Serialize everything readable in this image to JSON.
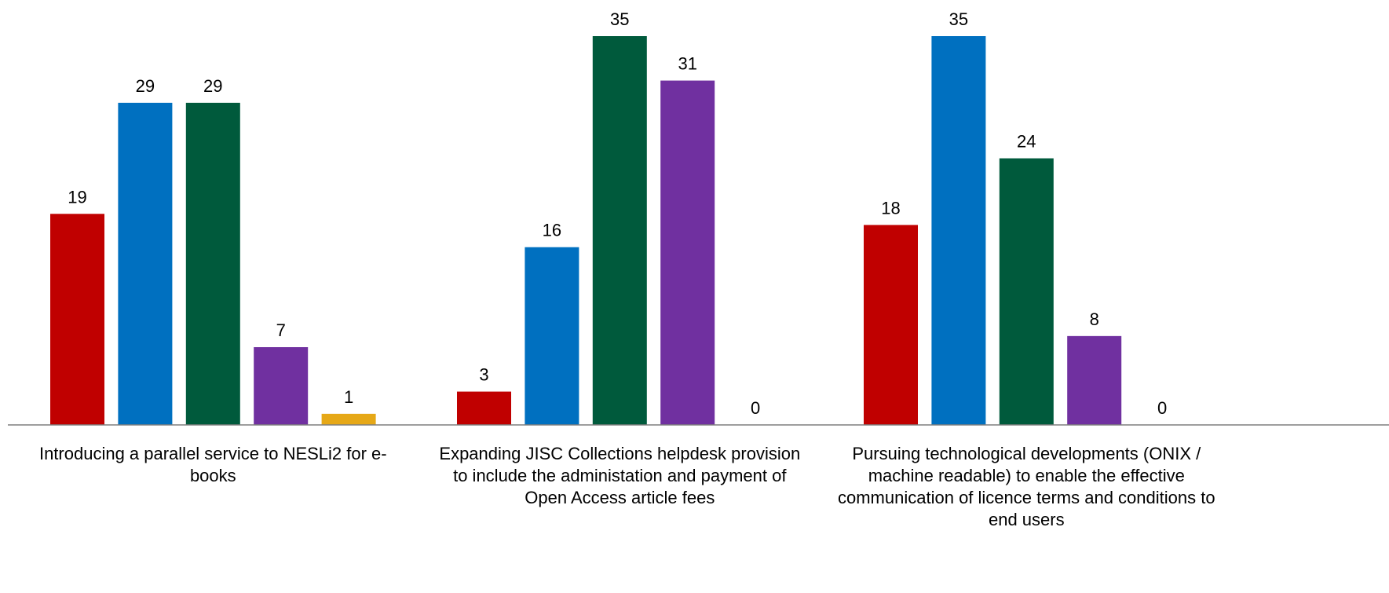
{
  "chart_data": {
    "type": "bar",
    "categories": [
      [
        "Introducing a parallel service to NESLi2 for e-",
        "books"
      ],
      [
        "Expanding JISC Collections helpdesk provision",
        "to include the administation and payment of",
        "Open Access article fees"
      ],
      [
        "Pursuing technological developments (ONIX /",
        "machine readable) to enable the effective",
        "communication of licence terms and conditions to",
        "end users"
      ]
    ],
    "series": [
      {
        "color": "#C00000",
        "values": [
          19,
          3,
          18
        ]
      },
      {
        "color": "#0070C0",
        "values": [
          29,
          16,
          35
        ]
      },
      {
        "color": "#005A3C",
        "values": [
          29,
          35,
          24
        ]
      },
      {
        "color": "#7030A0",
        "values": [
          7,
          31,
          8
        ]
      },
      {
        "color": "#E6A817",
        "values": [
          1,
          0,
          0
        ]
      }
    ],
    "ylim": [
      0,
      35
    ],
    "grid": false,
    "legend": "none"
  }
}
